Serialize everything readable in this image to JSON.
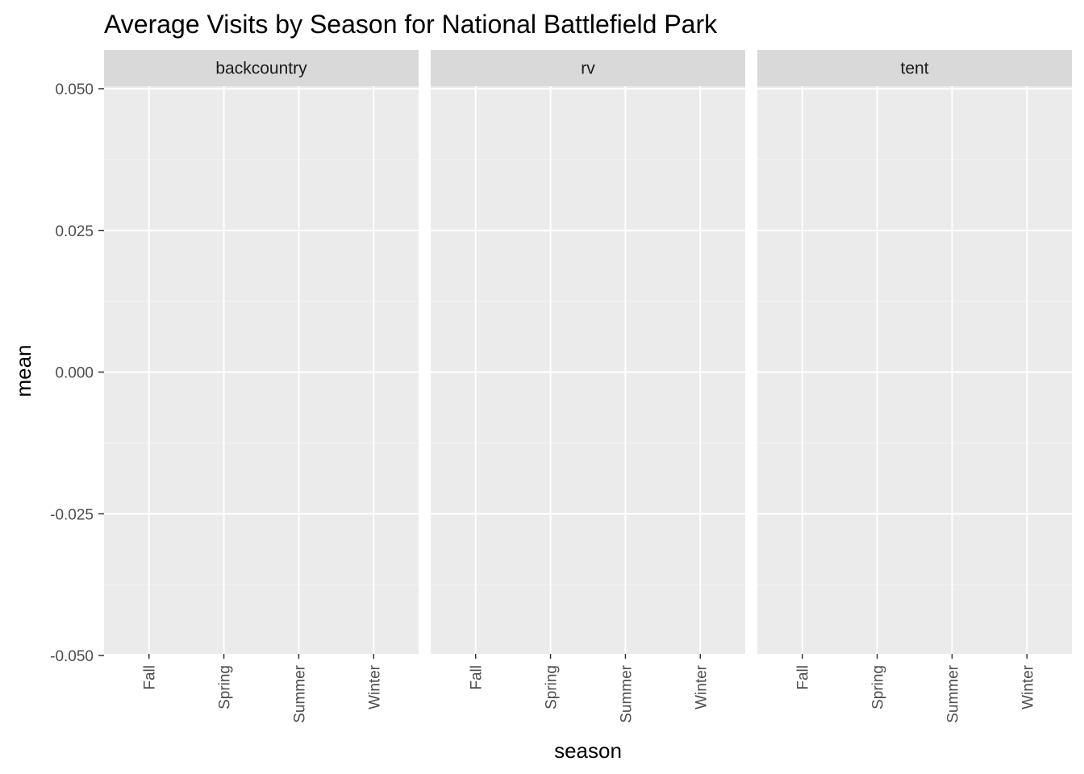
{
  "chart_data": {
    "type": "bar",
    "title": "Average Visits by Season for National Battlefield Park",
    "xlabel": "season",
    "ylabel": "mean",
    "categories": [
      "Fall",
      "Spring",
      "Summer",
      "Winter"
    ],
    "facets": [
      "backcountry",
      "rv",
      "tent"
    ],
    "ylim": [
      -0.05,
      0.05
    ],
    "y_ticks": [
      "0.050",
      "0.025",
      "0.000",
      "-0.025",
      "-0.050"
    ],
    "series": [],
    "grid": true,
    "legend": "none",
    "colors": {
      "panel_background": "#EBEBEB",
      "strip_background": "#D9D9D9",
      "grid_major": "#FFFFFF",
      "grid_minor": "#F5F5F5"
    }
  }
}
